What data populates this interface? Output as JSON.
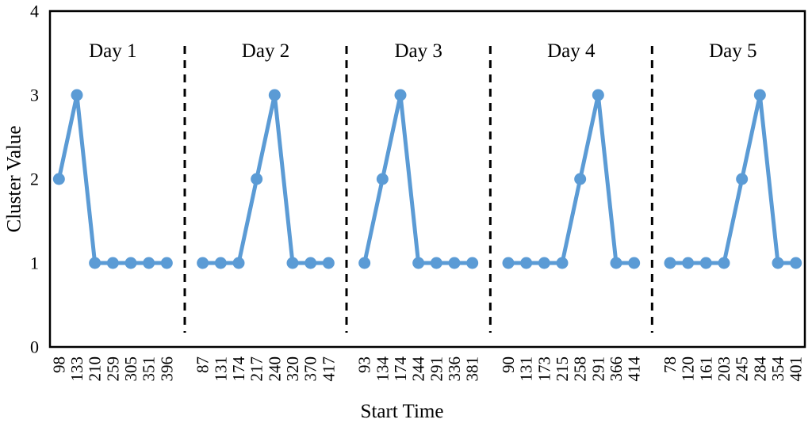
{
  "figure": {
    "background": "#ffffff"
  },
  "chart_data": {
    "type": "line",
    "title": "",
    "xlabel": "Start Time",
    "ylabel": "Cluster Value",
    "ylim": [
      0,
      4
    ],
    "yticks": [
      "0",
      "1",
      "2",
      "3",
      "4"
    ],
    "grid": false,
    "legend": false,
    "line_color": "#5B9BD5",
    "marker": "circle",
    "separator_color": "#000000",
    "axis_color": "#000000",
    "series": [
      {
        "name": "Day 1",
        "x": [
          "98",
          "133",
          "210",
          "259",
          "305",
          "351",
          "396"
        ],
        "values": [
          2,
          3,
          1,
          1,
          1,
          1,
          1
        ]
      },
      {
        "name": "Day 2",
        "x": [
          "87",
          "131",
          "174",
          "217",
          "240",
          "320",
          "370",
          "417"
        ],
        "values": [
          1,
          1,
          1,
          2,
          3,
          1,
          1,
          1
        ]
      },
      {
        "name": "Day 3",
        "x": [
          "93",
          "134",
          "174",
          "244",
          "291",
          "336",
          "381"
        ],
        "values": [
          1,
          2,
          3,
          1,
          1,
          1,
          1
        ]
      },
      {
        "name": "Day 4",
        "x": [
          "90",
          "131",
          "173",
          "215",
          "258",
          "291",
          "366",
          "414"
        ],
        "values": [
          1,
          1,
          1,
          1,
          2,
          3,
          1,
          1
        ]
      },
      {
        "name": "Day 5",
        "x": [
          "78",
          "120",
          "161",
          "203",
          "245",
          "284",
          "354",
          "401"
        ],
        "values": [
          1,
          1,
          1,
          1,
          2,
          3,
          1,
          1
        ]
      }
    ]
  }
}
